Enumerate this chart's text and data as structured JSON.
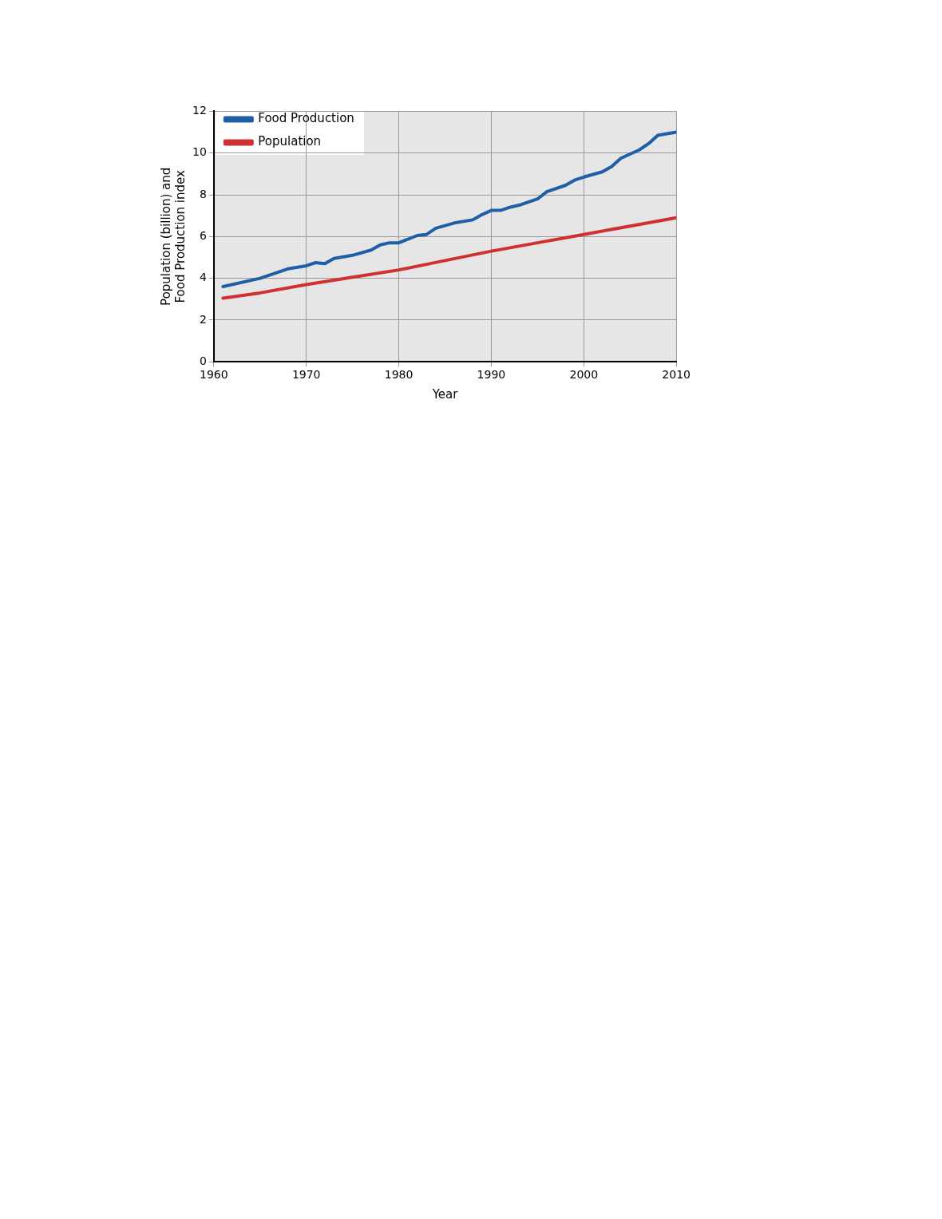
{
  "chart_data": {
    "type": "line",
    "xlabel": "Year",
    "ylabel": "Population (billion) and\nFood Production index",
    "xlim": [
      1960,
      2010
    ],
    "xticks": [
      1960,
      1970,
      1980,
      1990,
      2000,
      2010
    ],
    "ylim": [
      0,
      12
    ],
    "yticks": [
      0,
      2,
      4,
      6,
      8,
      10,
      12
    ],
    "grid": true,
    "legend": "top left",
    "marker": "none",
    "line_style": "solid",
    "series": [
      {
        "name": "Food Production",
        "color": "#1f5fa8",
        "x": [
          1961,
          1965,
          1968,
          1970,
          1971,
          1972,
          1973,
          1975,
          1977,
          1978,
          1979,
          1980,
          1982,
          1983,
          1984,
          1986,
          1988,
          1989,
          1990,
          1991,
          1992,
          1993,
          1995,
          1996,
          1998,
          1999,
          2000,
          2002,
          2003,
          2004,
          2006,
          2007,
          2008,
          2010
        ],
        "values": [
          3.6,
          4.0,
          4.45,
          4.6,
          4.75,
          4.7,
          4.95,
          5.1,
          5.35,
          5.6,
          5.7,
          5.7,
          6.05,
          6.1,
          6.4,
          6.65,
          6.8,
          7.05,
          7.25,
          7.25,
          7.4,
          7.5,
          7.8,
          8.15,
          8.45,
          8.7,
          8.85,
          9.1,
          9.35,
          9.75,
          10.15,
          10.45,
          10.85,
          11.0
        ]
      },
      {
        "name": "Population",
        "color": "#d03030",
        "x": [
          1961,
          1965,
          1970,
          1975,
          1980,
          1985,
          1990,
          1995,
          2000,
          2005,
          2010
        ],
        "values": [
          3.05,
          3.3,
          3.7,
          4.05,
          4.4,
          4.85,
          5.3,
          5.7,
          6.1,
          6.5,
          6.9
        ]
      }
    ]
  }
}
